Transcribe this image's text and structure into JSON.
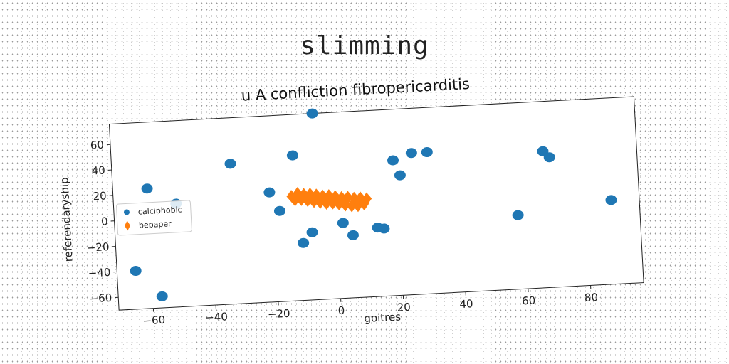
{
  "page": {
    "title": "slimming"
  },
  "chart_data": {
    "type": "scatter",
    "title": "u A confliction fibropericarditis",
    "xlabel": "goitres",
    "ylabel": "referendaryship",
    "xlim": [
      -71,
      97
    ],
    "ylim": [
      -70,
      76
    ],
    "xticks": [
      -60,
      -40,
      -20,
      0,
      20,
      40,
      60,
      80
    ],
    "yticks": [
      -60,
      -40,
      -20,
      0,
      20,
      40,
      60
    ],
    "grid": false,
    "legend": {
      "position": "left",
      "entries": [
        "calciphobic",
        "bepaper"
      ]
    },
    "series": [
      {
        "name": "calciphobic",
        "color": "#1f77b4",
        "marker": "circle",
        "points": [
          [
            -6,
            76
          ],
          [
            -33,
            40
          ],
          [
            -13,
            44
          ],
          [
            -60,
            24
          ],
          [
            -51,
            11
          ],
          [
            -21,
            16
          ],
          [
            -18,
            1
          ],
          [
            -7,
            9
          ],
          [
            -8,
            -17
          ],
          [
            -11,
            -25
          ],
          [
            2,
            -11
          ],
          [
            5,
            -21
          ],
          [
            13,
            -16
          ],
          [
            15,
            -17
          ],
          [
            19,
            36
          ],
          [
            21,
            24
          ],
          [
            25,
            41
          ],
          [
            30,
            41
          ],
          [
            58,
            -12
          ],
          [
            67,
            37
          ],
          [
            69,
            32
          ],
          [
            88,
            -4
          ],
          [
            -65,
            -40
          ],
          [
            -57,
            -61
          ]
        ]
      },
      {
        "name": "bepaper",
        "color": "#ff7f0e",
        "marker": "diamond",
        "points": [
          [
            -14,
            12
          ],
          [
            -12,
            14
          ],
          [
            -10,
            13
          ],
          [
            -8,
            13
          ],
          [
            -6,
            12
          ],
          [
            -4,
            11
          ],
          [
            -2,
            11
          ],
          [
            0,
            10
          ],
          [
            2,
            9
          ],
          [
            4,
            9
          ],
          [
            6,
            8
          ],
          [
            8,
            8
          ],
          [
            10,
            7
          ],
          [
            -13,
            9
          ],
          [
            -11,
            9
          ],
          [
            -9,
            8
          ],
          [
            -7,
            7
          ],
          [
            -5,
            6
          ],
          [
            -3,
            5
          ],
          [
            -1,
            5
          ],
          [
            1,
            4
          ],
          [
            3,
            3
          ],
          [
            5,
            2
          ],
          [
            7,
            2
          ],
          [
            9,
            3
          ]
        ]
      }
    ]
  }
}
